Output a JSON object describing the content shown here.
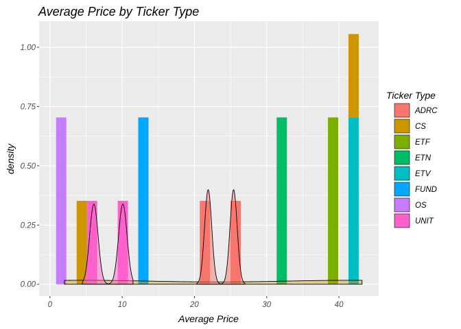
{
  "chart_data": {
    "type": "histogram",
    "title": "Average Price by Ticker Type",
    "xlabel": "Average Price",
    "ylabel": "density",
    "xlim": [
      -1.5,
      45.5
    ],
    "ylim": [
      -0.05,
      1.11
    ],
    "x_ticks": [
      0,
      10,
      20,
      30,
      40
    ],
    "y_ticks": [
      0,
      0.25,
      0.5,
      0.75,
      1
    ],
    "x_tick_labels": [
      "0",
      "10",
      "20",
      "30",
      "40"
    ],
    "y_tick_labels": [
      "0.00",
      "0.25",
      "0.50",
      "0.75",
      "1.00"
    ],
    "grid": true,
    "legend": {
      "title": "Ticker Type",
      "position": "right",
      "entries": [
        "ADRC",
        "CS",
        "ETF",
        "ETN",
        "ETV",
        "FUND",
        "OS",
        "UNIT"
      ]
    },
    "colors": {
      "ADRC": "#F8766D",
      "CS": "#CD9600",
      "ETF": "#7CAE00",
      "ETN": "#00BE67",
      "ETV": "#00BFC4",
      "FUND": "#00A9FF",
      "OS": "#C77CFF",
      "UNIT": "#FF61CC"
    },
    "bin_width": 1.42,
    "bars": [
      {
        "type": "OS",
        "x_start": 0.85,
        "x_end": 2.27,
        "y_start": 0,
        "y_end": 0.704
      },
      {
        "type": "CS",
        "x_start": 3.7,
        "x_end": 5.12,
        "y_start": 0,
        "y_end": 0.352
      },
      {
        "type": "UNIT",
        "x_start": 5.12,
        "x_end": 6.54,
        "y_start": 0,
        "y_end": 0.352
      },
      {
        "type": "UNIT",
        "x_start": 9.38,
        "x_end": 10.8,
        "y_start": 0,
        "y_end": 0.352
      },
      {
        "type": "FUND",
        "x_start": 12.22,
        "x_end": 13.64,
        "y_start": 0,
        "y_end": 0.704
      },
      {
        "type": "ADRC",
        "x_start": 20.74,
        "x_end": 22.16,
        "y_start": 0,
        "y_end": 0.352
      },
      {
        "type": "ADRC",
        "x_start": 24.99,
        "x_end": 26.41,
        "y_start": 0,
        "y_end": 0.352
      },
      {
        "type": "ETN",
        "x_start": 31.38,
        "x_end": 32.8,
        "y_start": 0,
        "y_end": 0.704
      },
      {
        "type": "ETF",
        "x_start": 38.48,
        "x_end": 39.9,
        "y_start": 0,
        "y_end": 0.704
      },
      {
        "type": "ETV",
        "x_start": 41.32,
        "x_end": 42.74,
        "y_start": 0,
        "y_end": 0.704
      },
      {
        "type": "CS",
        "x_start": 41.32,
        "x_end": 42.74,
        "y_start": 0.704,
        "y_end": 1.056
      }
    ],
    "density_curves": [
      {
        "type": "CS",
        "fill": "#CD9600",
        "fill_opacity": 0.4,
        "x_range": [
          2,
          43.2
        ],
        "components": [
          {
            "mean": 4.41,
            "sd": 12.0,
            "weight": 0.5
          },
          {
            "mean": 42.03,
            "sd": 12.0,
            "weight": 0.5
          }
        ]
      },
      {
        "type": "UNIT",
        "fill": "#FF61CC",
        "fill_opacity": 0.5,
        "x_range": [
          4.5,
          11.5
        ],
        "components": [
          {
            "mean": 6.08,
            "sd": 0.59,
            "weight": 0.5
          },
          {
            "mean": 10.09,
            "sd": 0.59,
            "weight": 0.5
          }
        ]
      },
      {
        "type": "ADRC",
        "fill": "#F8766D",
        "fill_opacity": 0.5,
        "x_range": [
          20.3,
          27.0
        ],
        "components": [
          {
            "mean": 21.9,
            "sd": 0.5,
            "weight": 0.5
          },
          {
            "mean": 25.42,
            "sd": 0.5,
            "weight": 0.5
          }
        ]
      }
    ]
  }
}
